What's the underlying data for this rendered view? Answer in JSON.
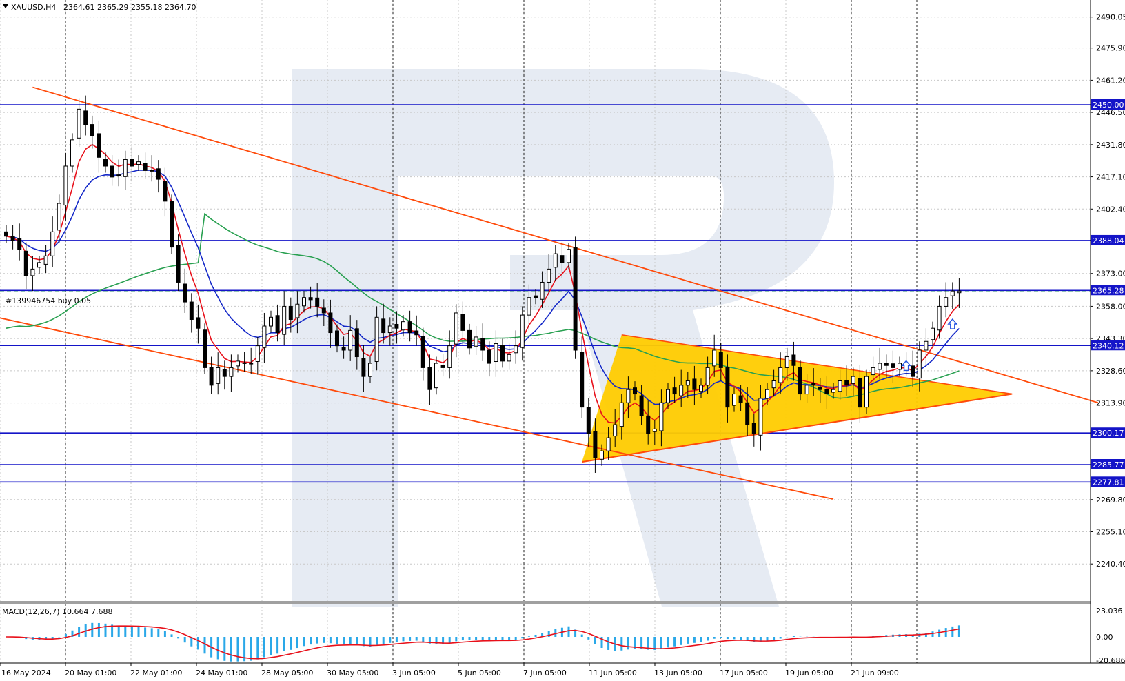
{
  "header": {
    "symbol": "XAUUSD,H4",
    "ohlc": "2364.61 2365.29 2355.18 2364.70",
    "order_label": "#139946754 buy 0.05"
  },
  "macd": {
    "label": "MACD(12,26,7) 10.664 7.688",
    "ticks": [
      "23.036",
      "0.00",
      "-20.686"
    ]
  },
  "colors": {
    "candle_up": "#ffffff",
    "candle_down": "#000000",
    "ema_fast": "#e8101a",
    "ema_slow": "#1428c8",
    "sma_long": "#28a050",
    "level_line": "#1414c8",
    "channel": "#ff4a0a",
    "triangle_fill": "#ffcc00",
    "macd_hist": "#2aa8e8",
    "macd_signal": "#e8101a",
    "watermark": "#e6ebf3"
  },
  "chart_data": {
    "type": "candlestick",
    "symbol": "XAUUSD",
    "timeframe": "H4",
    "price_ticks": [
      "2490.05",
      "2475.90",
      "2461.20",
      "2446.50",
      "2431.80",
      "2417.10",
      "2402.40",
      "2373.00",
      "2358.00",
      "2343.30",
      "2328.60",
      "2313.90",
      "2269.80",
      "2255.10",
      "2240.40"
    ],
    "levels": [
      {
        "label": "2450.00",
        "value": 2450.0
      },
      {
        "label": "2388.04",
        "value": 2388.04
      },
      {
        "label": "2365.28",
        "value": 2365.28
      },
      {
        "label": "2340.12",
        "value": 2340.12
      },
      {
        "label": "2300.17",
        "value": 2300.17
      },
      {
        "label": "2285.77",
        "value": 2285.77
      },
      {
        "label": "2277.81",
        "value": 2277.81
      }
    ],
    "time_labels": [
      "16 May 2024",
      "20 May 01:00",
      "22 May 01:00",
      "24 May 01:00",
      "28 May 05:00",
      "30 May 05:00",
      "3 Jun 05:00",
      "5 Jun 05:00",
      "7 Jun 05:00",
      "11 Jun 05:00",
      "13 Jun 05:00",
      "17 Jun 05:00",
      "19 Jun 05:00",
      "21 Jun 09:00"
    ],
    "trend_lines": [
      {
        "name": "channel-upper",
        "from": [
          "bar 4",
          2458
        ],
        "to": [
          "bar 165",
          2314
        ]
      },
      {
        "name": "channel-lower",
        "from": [
          "bar -6",
          2356
        ],
        "to": [
          "bar 125",
          2270
        ]
      },
      {
        "name": "triangle-support",
        "from": [
          "bar 87",
          2287
        ],
        "to": [
          "bar 152",
          2318
        ]
      }
    ],
    "triangle": {
      "apex": [
        "bar 152",
        2318
      ],
      "upper": [
        "bar 93",
        2345
      ],
      "lower": [
        "bar 87",
        2287
      ]
    },
    "macd_range": [
      -20.686,
      23.036
    ],
    "closes": [
      2390,
      2388,
      2384,
      2372,
      2375,
      2378,
      2381,
      2392,
      2405,
      2422,
      2434,
      2448,
      2441,
      2436,
      2426,
      2422,
      2417,
      2418,
      2425,
      2422,
      2424,
      2420,
      2420,
      2416,
      2406,
      2385,
      2369,
      2360,
      2352,
      2348,
      2330,
      2322,
      2330,
      2326,
      2330,
      2333,
      2332,
      2332,
      2340,
      2349,
      2353,
      2346,
      2358,
      2352,
      2359,
      2362,
      2361,
      2358,
      2355,
      2346,
      2340,
      2338,
      2347,
      2335,
      2326,
      2332,
      2353,
      2346,
      2349,
      2348,
      2351,
      2346,
      2345,
      2330,
      2320,
      2332,
      2330,
      2340,
      2355,
      2347,
      2339,
      2344,
      2338,
      2332,
      2341,
      2333,
      2336,
      2340,
      2354,
      2362,
      2362,
      2369,
      2375,
      2382,
      2378,
      2384,
      2338,
      2312,
      2300,
      2289,
      2292,
      2298,
      2304,
      2314,
      2320,
      2318,
      2308,
      2300,
      2302,
      2314,
      2320,
      2318,
      2322,
      2324,
      2320,
      2322,
      2330,
      2338,
      2330,
      2312,
      2318,
      2314,
      2304,
      2300,
      2316,
      2320,
      2324,
      2330,
      2335,
      2331,
      2318,
      2322,
      2322,
      2320,
      2318,
      2320,
      2324,
      2322,
      2326,
      2312,
      2326,
      2330,
      2332,
      2331,
      2330,
      2332,
      2330,
      2326,
      2338,
      2342,
      2348,
      2358,
      2362,
      2365,
      2365
    ]
  }
}
